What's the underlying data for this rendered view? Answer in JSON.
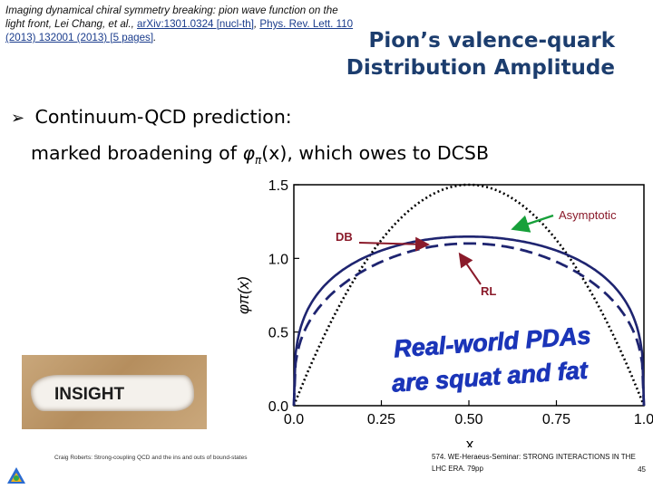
{
  "reference": {
    "text": "Imaging dynamical chiral symmetry breaking: pion wave function on the light front, Lei Chang, et al.,",
    "arxiv": "arXiv:1301.0324 [nucl-th]",
    "sep": ",",
    "journal": "Phys. Rev. Lett. 110 (2013) 132001 (2013) [5 pages]",
    "end": "."
  },
  "title": {
    "line1": "Pion’s valence-quark",
    "line2": "Distribution Amplitude"
  },
  "bullet": {
    "text": "Continuum-QCD prediction:",
    "sub_pre": "marked broadening of ",
    "sub_phi": "φ",
    "sub_pi": "π",
    "sub_post": "(x), which owes to DCSB"
  },
  "chart_data": {
    "type": "line",
    "xlabel": "x",
    "ylabel": "φπ(x)",
    "xlim": [
      0,
      1
    ],
    "ylim": [
      0,
      1.5
    ],
    "xticks": [
      "0.0",
      "0.25",
      "0.50",
      "0.75",
      "1.0"
    ],
    "yticks": [
      "1.5",
      "1.0",
      "0.5",
      "0.0"
    ],
    "series": [
      {
        "name": "Asymptotic",
        "style": "dotted",
        "color": "#000000"
      },
      {
        "name": "DB",
        "style": "dashed",
        "color": "#1e2470"
      },
      {
        "name": "RL",
        "style": "solid",
        "color": "#1e2470"
      }
    ],
    "annotations": {
      "asymptotic": "Asymptotic",
      "db": "DB",
      "rl": "RL",
      "slogan1": "Real-world PDAs",
      "slogan2": "are squat and fat"
    }
  },
  "insight": {
    "word": "INSIGHT"
  },
  "footer": {
    "left": "Craig Roberts: Strong-coupling QCD and the ins and outs of bound-states",
    "right_line1": "574. WE-Heraeus-Seminar: STRONG INTERACTIONS IN THE",
    "right_line2": "LHC ERA. 79pp",
    "page": "45"
  },
  "colors": {
    "title": "#1c3d6e",
    "curve": "#1e2470",
    "annotation": "#8a1a2a",
    "slogan": "#1b35b8"
  }
}
